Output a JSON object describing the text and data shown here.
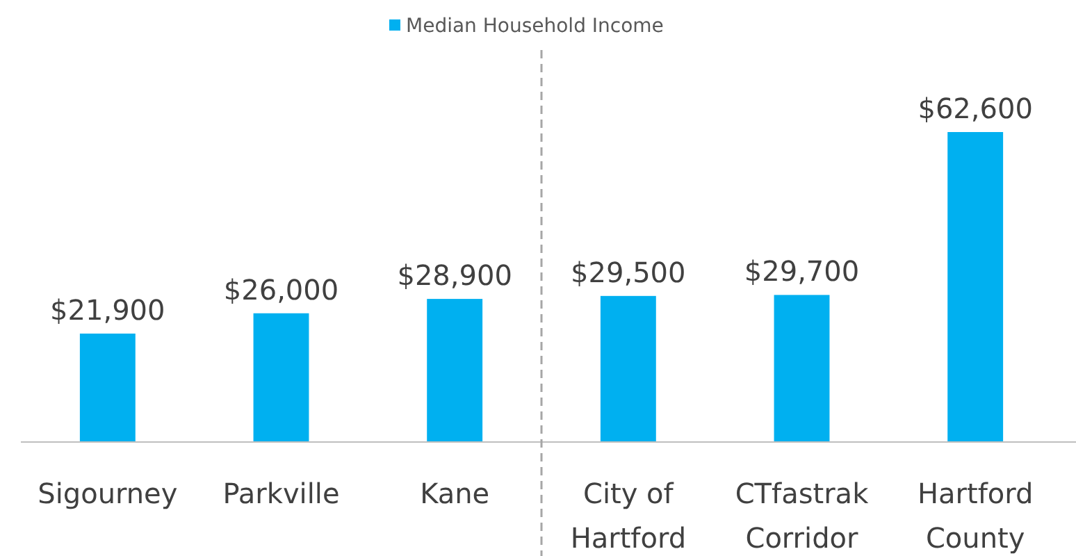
{
  "chart_data": {
    "type": "bar",
    "categories": [
      "Sigourney",
      "Parkville",
      "Kane",
      "City of Hartford",
      "CTfastrak Corridor",
      "Hartford County"
    ],
    "series": [
      {
        "name": "Median Household Income",
        "color": "#00b0f0",
        "values": [
          21900,
          26000,
          28900,
          29500,
          29700,
          62600
        ],
        "value_labels": [
          "$21,900",
          "$26,000",
          "$28,900",
          "$29,500",
          "$29,700",
          "$62,600"
        ]
      }
    ],
    "legend": "top"
  }
}
